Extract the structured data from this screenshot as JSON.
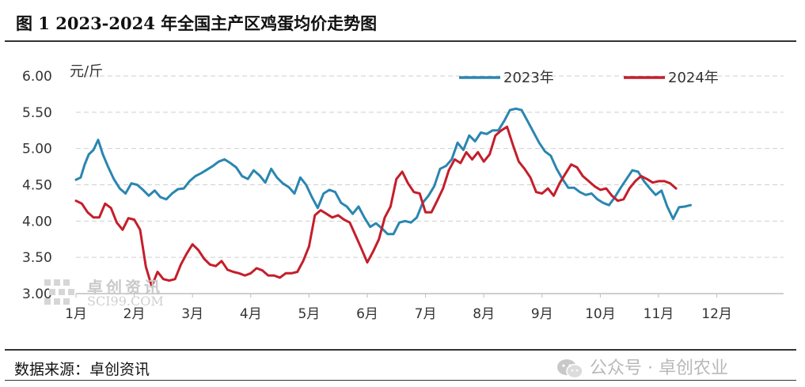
{
  "page": {
    "title": "图 1 2023-2024 年全国主产区鸡蛋均价走势图",
    "source": "数据来源：卓创资讯",
    "wechat_mark": "公众号 · 卓创农业",
    "watermark_cn": "卓创资讯",
    "watermark_en": "SCI99.COM"
  },
  "chart_data": {
    "type": "line",
    "ylabel": "元/斤",
    "ylim": [
      3.0,
      6.0
    ],
    "yticks": [
      "3.00",
      "3.50",
      "4.00",
      "4.50",
      "5.00",
      "5.50",
      "6.00"
    ],
    "xticks": [
      "1月",
      "2月",
      "3月",
      "4月",
      "5月",
      "6月",
      "7月",
      "8月",
      "9月",
      "10月",
      "11月",
      "12月"
    ],
    "grid": true,
    "legend_position": "top-right",
    "series": [
      {
        "name": "2023年",
        "color": "#2a86b0",
        "points": [
          [
            0.0,
            4.57
          ],
          [
            0.08,
            4.6
          ],
          [
            0.15,
            4.78
          ],
          [
            0.22,
            4.92
          ],
          [
            0.3,
            4.98
          ],
          [
            0.38,
            5.12
          ],
          [
            0.46,
            4.92
          ],
          [
            0.55,
            4.75
          ],
          [
            0.65,
            4.58
          ],
          [
            0.75,
            4.45
          ],
          [
            0.85,
            4.38
          ],
          [
            0.95,
            4.52
          ],
          [
            1.05,
            4.5
          ],
          [
            1.15,
            4.43
          ],
          [
            1.25,
            4.35
          ],
          [
            1.35,
            4.42
          ],
          [
            1.45,
            4.33
          ],
          [
            1.55,
            4.3
          ],
          [
            1.65,
            4.38
          ],
          [
            1.75,
            4.44
          ],
          [
            1.85,
            4.45
          ],
          [
            1.95,
            4.55
          ],
          [
            2.05,
            4.62
          ],
          [
            2.15,
            4.66
          ],
          [
            2.25,
            4.71
          ],
          [
            2.35,
            4.76
          ],
          [
            2.45,
            4.82
          ],
          [
            2.55,
            4.85
          ],
          [
            2.65,
            4.8
          ],
          [
            2.75,
            4.74
          ],
          [
            2.85,
            4.62
          ],
          [
            2.95,
            4.58
          ],
          [
            3.05,
            4.7
          ],
          [
            3.15,
            4.63
          ],
          [
            3.25,
            4.53
          ],
          [
            3.35,
            4.72
          ],
          [
            3.45,
            4.6
          ],
          [
            3.55,
            4.52
          ],
          [
            3.65,
            4.47
          ],
          [
            3.75,
            4.38
          ],
          [
            3.85,
            4.6
          ],
          [
            3.95,
            4.5
          ],
          [
            4.05,
            4.33
          ],
          [
            4.15,
            4.18
          ],
          [
            4.25,
            4.38
          ],
          [
            4.35,
            4.43
          ],
          [
            4.45,
            4.4
          ],
          [
            4.55,
            4.25
          ],
          [
            4.65,
            4.2
          ],
          [
            4.75,
            4.1
          ],
          [
            4.85,
            4.2
          ],
          [
            4.95,
            4.05
          ],
          [
            5.05,
            3.92
          ],
          [
            5.15,
            3.97
          ],
          [
            5.25,
            3.9
          ],
          [
            5.35,
            3.82
          ],
          [
            5.45,
            3.82
          ],
          [
            5.55,
            3.98
          ],
          [
            5.65,
            4.0
          ],
          [
            5.75,
            3.98
          ],
          [
            5.85,
            4.05
          ],
          [
            5.95,
            4.25
          ],
          [
            6.05,
            4.35
          ],
          [
            6.15,
            4.48
          ],
          [
            6.25,
            4.72
          ],
          [
            6.35,
            4.76
          ],
          [
            6.45,
            4.85
          ],
          [
            6.55,
            5.08
          ],
          [
            6.65,
            4.98
          ],
          [
            6.75,
            5.18
          ],
          [
            6.85,
            5.1
          ],
          [
            6.95,
            5.22
          ],
          [
            7.05,
            5.2
          ],
          [
            7.15,
            5.25
          ],
          [
            7.25,
            5.25
          ],
          [
            7.35,
            5.38
          ],
          [
            7.45,
            5.53
          ],
          [
            7.55,
            5.55
          ],
          [
            7.65,
            5.53
          ],
          [
            7.75,
            5.38
          ],
          [
            7.85,
            5.23
          ],
          [
            7.95,
            5.08
          ],
          [
            8.05,
            4.96
          ],
          [
            8.15,
            4.9
          ],
          [
            8.25,
            4.72
          ],
          [
            8.35,
            4.58
          ],
          [
            8.45,
            4.46
          ],
          [
            8.55,
            4.46
          ],
          [
            8.65,
            4.4
          ],
          [
            8.75,
            4.36
          ],
          [
            8.85,
            4.38
          ],
          [
            8.95,
            4.3
          ],
          [
            9.05,
            4.25
          ],
          [
            9.15,
            4.22
          ],
          [
            9.25,
            4.33
          ],
          [
            9.35,
            4.46
          ],
          [
            9.45,
            4.58
          ],
          [
            9.55,
            4.7
          ],
          [
            9.65,
            4.68
          ],
          [
            9.75,
            4.55
          ],
          [
            9.85,
            4.45
          ],
          [
            9.95,
            4.36
          ],
          [
            10.05,
            4.42
          ],
          [
            10.15,
            4.2
          ],
          [
            10.25,
            4.03
          ],
          [
            10.35,
            4.19
          ],
          [
            10.45,
            4.2
          ],
          [
            10.55,
            4.22
          ]
        ]
      },
      {
        "name": "2024年",
        "color": "#c41e2a",
        "points": [
          [
            0.0,
            4.28
          ],
          [
            0.1,
            4.24
          ],
          [
            0.2,
            4.12
          ],
          [
            0.3,
            4.05
          ],
          [
            0.4,
            4.05
          ],
          [
            0.5,
            4.24
          ],
          [
            0.6,
            4.18
          ],
          [
            0.7,
            3.98
          ],
          [
            0.8,
            3.88
          ],
          [
            0.9,
            4.04
          ],
          [
            1.0,
            4.02
          ],
          [
            1.1,
            3.88
          ],
          [
            1.2,
            3.37
          ],
          [
            1.3,
            3.1
          ],
          [
            1.4,
            3.3
          ],
          [
            1.5,
            3.2
          ],
          [
            1.6,
            3.18
          ],
          [
            1.7,
            3.2
          ],
          [
            1.8,
            3.4
          ],
          [
            1.9,
            3.55
          ],
          [
            2.0,
            3.68
          ],
          [
            2.1,
            3.6
          ],
          [
            2.2,
            3.48
          ],
          [
            2.3,
            3.4
          ],
          [
            2.4,
            3.38
          ],
          [
            2.5,
            3.45
          ],
          [
            2.6,
            3.33
          ],
          [
            2.7,
            3.3
          ],
          [
            2.8,
            3.28
          ],
          [
            2.9,
            3.25
          ],
          [
            3.0,
            3.28
          ],
          [
            3.1,
            3.35
          ],
          [
            3.2,
            3.32
          ],
          [
            3.3,
            3.25
          ],
          [
            3.4,
            3.25
          ],
          [
            3.5,
            3.22
          ],
          [
            3.6,
            3.28
          ],
          [
            3.7,
            3.28
          ],
          [
            3.8,
            3.3
          ],
          [
            3.9,
            3.45
          ],
          [
            4.0,
            3.65
          ],
          [
            4.1,
            4.08
          ],
          [
            4.2,
            4.15
          ],
          [
            4.3,
            4.1
          ],
          [
            4.4,
            4.05
          ],
          [
            4.5,
            4.08
          ],
          [
            4.6,
            4.02
          ],
          [
            4.7,
            3.98
          ],
          [
            4.8,
            3.8
          ],
          [
            4.9,
            3.62
          ],
          [
            5.0,
            3.43
          ],
          [
            5.1,
            3.58
          ],
          [
            5.2,
            3.75
          ],
          [
            5.3,
            4.05
          ],
          [
            5.4,
            4.2
          ],
          [
            5.5,
            4.58
          ],
          [
            5.6,
            4.68
          ],
          [
            5.7,
            4.52
          ],
          [
            5.8,
            4.4
          ],
          [
            5.9,
            4.38
          ],
          [
            6.0,
            4.12
          ],
          [
            6.1,
            4.12
          ],
          [
            6.2,
            4.28
          ],
          [
            6.3,
            4.45
          ],
          [
            6.4,
            4.7
          ],
          [
            6.5,
            4.85
          ],
          [
            6.6,
            4.8
          ],
          [
            6.7,
            4.95
          ],
          [
            6.8,
            4.85
          ],
          [
            6.9,
            4.95
          ],
          [
            7.0,
            4.82
          ],
          [
            7.1,
            4.92
          ],
          [
            7.2,
            5.18
          ],
          [
            7.3,
            5.25
          ],
          [
            7.4,
            5.3
          ],
          [
            7.5,
            5.05
          ],
          [
            7.6,
            4.82
          ],
          [
            7.7,
            4.72
          ],
          [
            7.8,
            4.6
          ],
          [
            7.9,
            4.4
          ],
          [
            8.0,
            4.38
          ],
          [
            8.1,
            4.45
          ],
          [
            8.2,
            4.35
          ],
          [
            8.3,
            4.52
          ],
          [
            8.4,
            4.65
          ],
          [
            8.5,
            4.78
          ],
          [
            8.6,
            4.74
          ],
          [
            8.7,
            4.62
          ],
          [
            8.8,
            4.55
          ],
          [
            8.9,
            4.48
          ],
          [
            9.0,
            4.43
          ],
          [
            9.1,
            4.45
          ],
          [
            9.2,
            4.35
          ],
          [
            9.3,
            4.28
          ],
          [
            9.4,
            4.3
          ],
          [
            9.5,
            4.45
          ],
          [
            9.6,
            4.55
          ],
          [
            9.7,
            4.62
          ],
          [
            9.8,
            4.58
          ],
          [
            9.9,
            4.53
          ],
          [
            10.0,
            4.55
          ],
          [
            10.1,
            4.55
          ],
          [
            10.2,
            4.52
          ],
          [
            10.3,
            4.45
          ]
        ]
      }
    ]
  }
}
